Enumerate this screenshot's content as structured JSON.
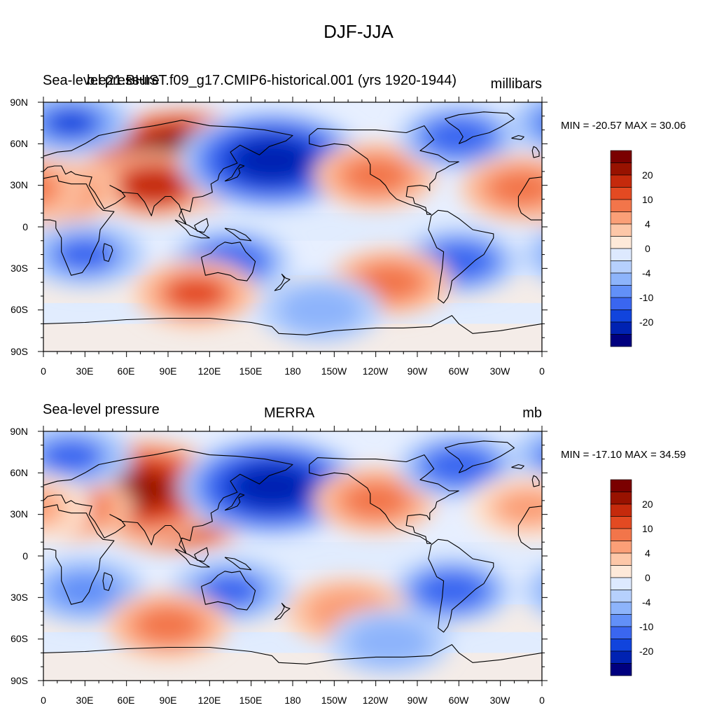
{
  "title": "DJF-JJA",
  "colors": {
    "palette": [
      "#00007f",
      "#0022b2",
      "#1144dd",
      "#3a66f0",
      "#6290f8",
      "#8db4fb",
      "#b6d0fd",
      "#dde9fe",
      "#fee9d9",
      "#fdc7a8",
      "#fb9f77",
      "#f2754a",
      "#e34a22",
      "#c52a0c",
      "#981200",
      "#7a0000"
    ],
    "coast": "#000000"
  },
  "panels": [
    {
      "left_title": "Sea-level pressure",
      "center_title": "b.e21.BHIST.f09_g17.CMIP6-historical.001 (yrs 1920-1944)",
      "right_title": "millibars",
      "minmax": "MIN = -20.57 MAX =  30.06"
    },
    {
      "left_title": "Sea-level pressure",
      "center_title": "MERRA",
      "right_title": "mb",
      "minmax": "MIN = -17.10 MAX =  34.59"
    }
  ],
  "lat_labels": [
    "90N",
    "60N",
    "30N",
    "0",
    "30S",
    "60S",
    "90S"
  ],
  "lon_labels": [
    "0",
    "30E",
    "60E",
    "90E",
    "120E",
    "150E",
    "180",
    "150W",
    "120W",
    "90W",
    "60W",
    "30W",
    "0"
  ],
  "colorbar_labels": [
    "20",
    "10",
    "4",
    "0",
    "-4",
    "-10",
    "-20"
  ],
  "chart_data": [
    {
      "type": "heatmap",
      "title": "b.e21.BHIST.f09_g17.CMIP6-historical.001 (yrs 1920-1944)",
      "units": "millibars",
      "min": -20.57,
      "max": 30.06,
      "contour_levels": [
        -30,
        -25,
        -20,
        -15,
        -10,
        -8,
        -6,
        -4,
        -2,
        0,
        2,
        4,
        6,
        8,
        10,
        15,
        20,
        25,
        30
      ],
      "x_range": [
        0,
        360
      ],
      "y_range": [
        -90,
        90
      ],
      "centers": [
        {
          "lon": 100,
          "lat": 48,
          "value": 26
        },
        {
          "lon": 80,
          "lat": 30,
          "value": 14
        },
        {
          "lon": 10,
          "lat": 25,
          "value": 8
        },
        {
          "lon": 165,
          "lat": 48,
          "value": -18
        },
        {
          "lon": 240,
          "lat": 37,
          "value": 8
        },
        {
          "lon": 300,
          "lat": 65,
          "value": -9
        },
        {
          "lon": 20,
          "lat": 75,
          "value": -10
        },
        {
          "lon": 345,
          "lat": 28,
          "value": 7
        },
        {
          "lon": 135,
          "lat": -25,
          "value": -9
        },
        {
          "lon": 30,
          "lat": -20,
          "value": -8
        },
        {
          "lon": 300,
          "lat": -25,
          "value": -9
        },
        {
          "lon": 110,
          "lat": -48,
          "value": 9
        },
        {
          "lon": 250,
          "lat": -40,
          "value": 7
        },
        {
          "lon": 200,
          "lat": -60,
          "value": -4
        }
      ]
    },
    {
      "type": "heatmap",
      "title": "MERRA",
      "units": "mb",
      "min": -17.1,
      "max": 34.59,
      "contour_levels": [
        -30,
        -25,
        -20,
        -15,
        -10,
        -8,
        -6,
        -4,
        -2,
        0,
        2,
        4,
        6,
        8,
        10,
        15,
        20,
        25,
        30
      ],
      "x_range": [
        0,
        360
      ],
      "y_range": [
        -90,
        90
      ],
      "centers": [
        {
          "lon": 95,
          "lat": 40,
          "value": 26
        },
        {
          "lon": 70,
          "lat": 48,
          "value": 16
        },
        {
          "lon": 20,
          "lat": 35,
          "value": 10
        },
        {
          "lon": 165,
          "lat": 50,
          "value": -18
        },
        {
          "lon": 240,
          "lat": 40,
          "value": 8
        },
        {
          "lon": 300,
          "lat": 65,
          "value": -9
        },
        {
          "lon": 20,
          "lat": 72,
          "value": -8
        },
        {
          "lon": 350,
          "lat": 35,
          "value": 6
        },
        {
          "lon": 135,
          "lat": -25,
          "value": -8
        },
        {
          "lon": 30,
          "lat": -25,
          "value": -6
        },
        {
          "lon": 295,
          "lat": -25,
          "value": -9
        },
        {
          "lon": 90,
          "lat": -50,
          "value": 8
        },
        {
          "lon": 220,
          "lat": -40,
          "value": 5
        },
        {
          "lon": 250,
          "lat": -62,
          "value": -4
        }
      ]
    }
  ]
}
